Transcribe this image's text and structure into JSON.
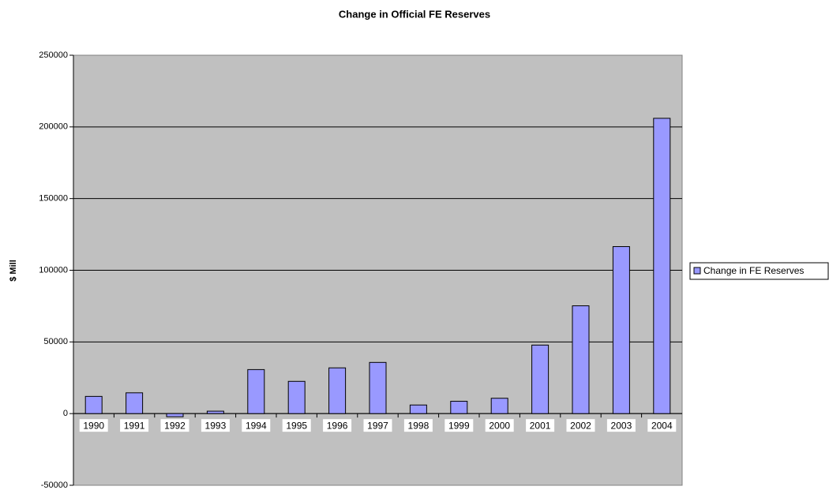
{
  "chart_data": {
    "type": "bar",
    "title": "Change in Official FE Reserves",
    "y_label": "$ Mill",
    "categories": [
      "1990",
      "1991",
      "1992",
      "1993",
      "1994",
      "1995",
      "1996",
      "1997",
      "1998",
      "1999",
      "2000",
      "2001",
      "2002",
      "2003",
      "2004"
    ],
    "series": [
      {
        "name": "Change in FE Reserves",
        "color": "#9999ff",
        "values": [
          12000,
          14500,
          -2200,
          1700,
          30700,
          22500,
          31900,
          35700,
          6000,
          8600,
          10700,
          47800,
          75200,
          116500,
          206000
        ]
      }
    ],
    "ylim": [
      -50000,
      250000
    ],
    "yticks": [
      -50000,
      0,
      50000,
      100000,
      150000,
      200000,
      250000
    ],
    "grid": true,
    "legend": "right"
  }
}
